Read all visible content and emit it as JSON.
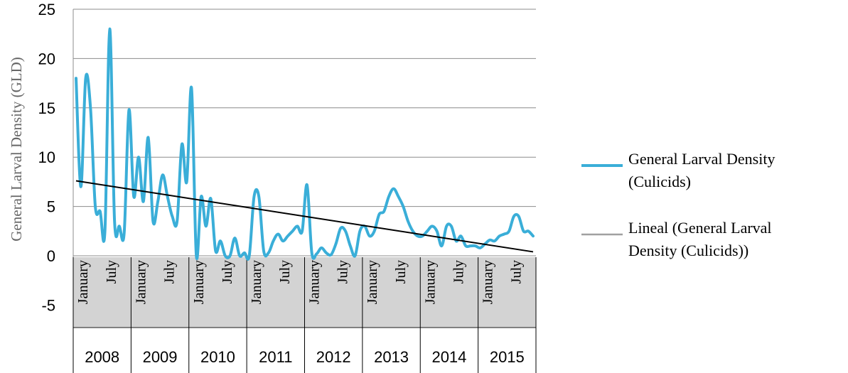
{
  "chart_data": {
    "type": "line",
    "ylabel": "General Larval Density (GLD)",
    "ylim": [
      -5,
      25
    ],
    "yticks": [
      25,
      20,
      15,
      10,
      5,
      0,
      -5
    ],
    "grid": true,
    "month_labels": [
      "January",
      "July"
    ],
    "years": [
      "2008",
      "2009",
      "2010",
      "2011",
      "2012",
      "2013",
      "2014",
      "2015"
    ],
    "series": [
      {
        "name": "General Larval Density (Culicids)",
        "color": "#3aaed8",
        "values": [
          18,
          7,
          18,
          15,
          5,
          4.5,
          2.5,
          23,
          3.5,
          3,
          2.3,
          14.8,
          6,
          10,
          5.5,
          12,
          3.5,
          5.5,
          8.2,
          6,
          4,
          3.5,
          11.3,
          7.5,
          17,
          0,
          6,
          3,
          5.8,
          0.5,
          1.5,
          0,
          0,
          1.8,
          0,
          0.3,
          0,
          6,
          6,
          0.5,
          0.3,
          1.5,
          2.2,
          1.5,
          2,
          2.5,
          3,
          2.5,
          7.2,
          0.3,
          0.2,
          0.8,
          0.3,
          0.1,
          1.2,
          2.8,
          2.5,
          1,
          0,
          2.5,
          3,
          2,
          2.5,
          4.2,
          4.5,
          6,
          6.8,
          6,
          5,
          3.5,
          2.5,
          2,
          2,
          2.5,
          3,
          2.5,
          1,
          3,
          3,
          1.5,
          2,
          1,
          1,
          1,
          0.8,
          1.2,
          1.6,
          1.5,
          2,
          2.2,
          2.5,
          4,
          4,
          2.5,
          2.5,
          2
        ]
      },
      {
        "name": "Lineal (General Larval Density (Culicids))",
        "color": "#000000",
        "trend": [
          7.6,
          0.4
        ]
      }
    ],
    "legend_position": "right",
    "legend": [
      {
        "label_line1": "General Larval Density",
        "label_line2": "(Culicids)",
        "color": "#3aaed8"
      },
      {
        "label_line1": "Lineal (General Larval",
        "label_line2": "Density (Culicids))",
        "color": "#a0a0a0"
      }
    ]
  }
}
